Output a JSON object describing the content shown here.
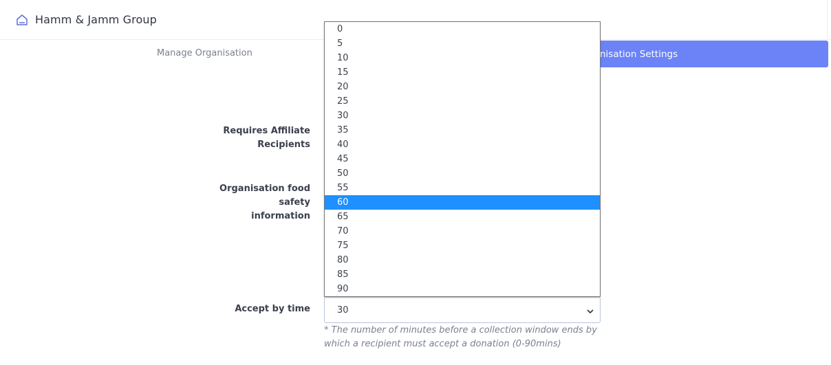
{
  "header": {
    "org_name": "Hamm & Jamm Group",
    "icon": "home-icon"
  },
  "tabs": {
    "manage": "Manage Organisation",
    "settings": "nisation Settings"
  },
  "form": {
    "affiliate_label_line1": "Requires Affiliate",
    "affiliate_label_line2": "Recipients",
    "foodsafety_line1": "Organisation food",
    "foodsafety_line2": "safety",
    "foodsafety_line3": "information",
    "accept_label": "Accept by time",
    "accept_value": "30",
    "accept_help_line1": "* The number of minutes before a collection window ends by",
    "accept_help_line2": "which a recipient must accept a donation (0-90mins)"
  },
  "dropdown": {
    "options": [
      "0",
      "5",
      "10",
      "15",
      "20",
      "25",
      "30",
      "35",
      "40",
      "45",
      "50",
      "55",
      "60",
      "65",
      "70",
      "75",
      "80",
      "85",
      "90"
    ],
    "highlighted": "60"
  },
  "colors": {
    "accent": "#6b83f6",
    "highlight": "#1e90ff"
  }
}
